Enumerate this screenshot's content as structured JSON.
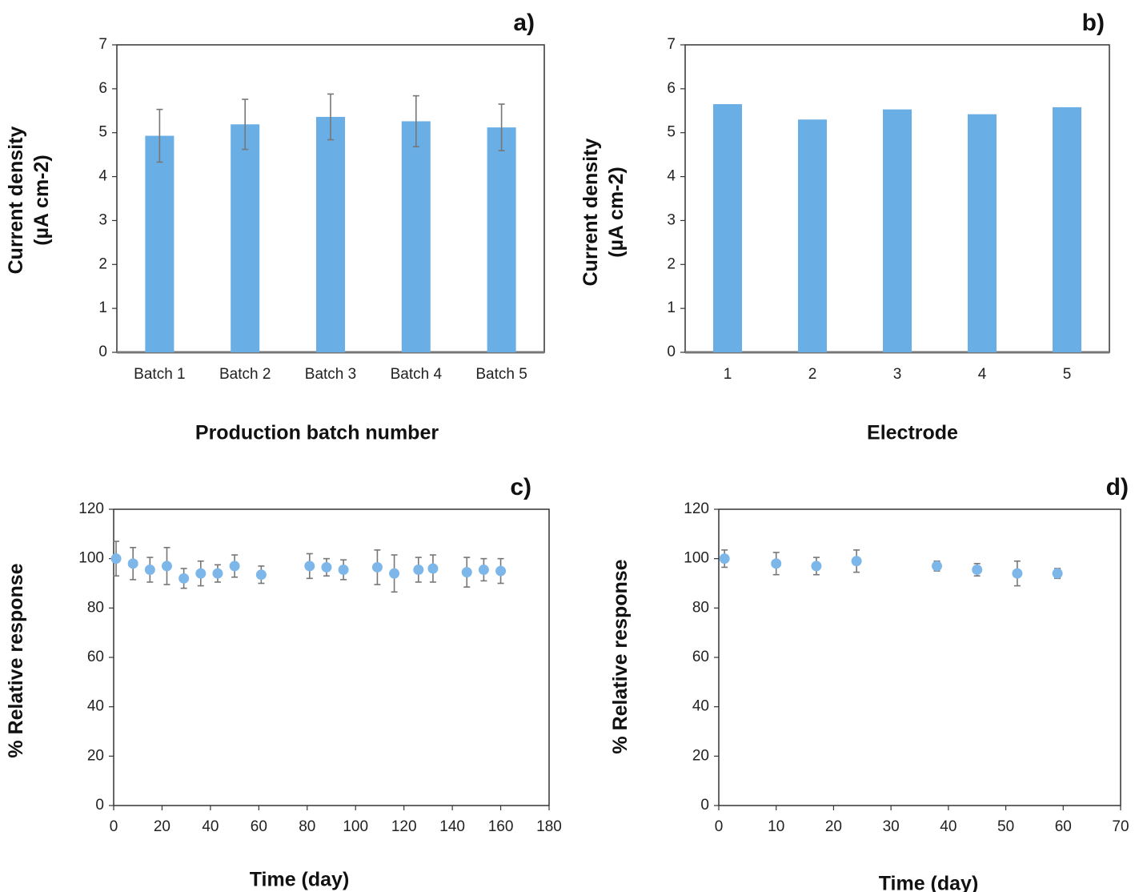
{
  "chart_data": [
    {
      "panel_label": "a)",
      "type": "bar",
      "categories": [
        "Batch 1",
        "Batch 2",
        "Batch 3",
        "Batch 4",
        "Batch 5"
      ],
      "values": [
        4.93,
        5.19,
        5.36,
        5.26,
        5.12
      ],
      "errors": [
        0.6,
        0.57,
        0.52,
        0.58,
        0.53
      ],
      "xlabel": "Production batch number",
      "ylabel": [
        "Current density",
        "(µA cm-2)"
      ],
      "ylim": [
        0,
        7
      ],
      "yticks": [
        0,
        1,
        2,
        3,
        4,
        5,
        6,
        7
      ],
      "color": "#6aaee6"
    },
    {
      "panel_label": "b)",
      "type": "bar",
      "categories": [
        "1",
        "2",
        "3",
        "4",
        "5"
      ],
      "values": [
        5.65,
        5.3,
        5.53,
        5.42,
        5.58
      ],
      "xlabel": "Electrode",
      "ylabel": [
        "Current density",
        "(µA cm-2)"
      ],
      "ylim": [
        0,
        7
      ],
      "yticks": [
        0,
        1,
        2,
        3,
        4,
        5,
        6,
        7
      ],
      "color": "#6aaee6"
    },
    {
      "panel_label": "c)",
      "type": "scatter",
      "x": [
        1,
        8,
        15,
        22,
        29,
        36,
        43,
        50,
        61,
        81,
        88,
        95,
        109,
        116,
        126,
        132,
        146,
        153,
        160
      ],
      "y": [
        100,
        98,
        95.5,
        97,
        92,
        94,
        94,
        97,
        93.5,
        97,
        96.5,
        95.5,
        96.5,
        94,
        95.5,
        96,
        94.5,
        95.5,
        95
      ],
      "errors": [
        7,
        6.5,
        5,
        7.5,
        4,
        5,
        3.5,
        4.5,
        3.5,
        5,
        3.5,
        4,
        7,
        7.5,
        5,
        5.5,
        6,
        4.5,
        5
      ],
      "xlabel": "Time (day)",
      "ylabel": "% Relative response",
      "xlim": [
        0,
        180
      ],
      "xticks": [
        0,
        20,
        40,
        60,
        80,
        100,
        120,
        140,
        160,
        180
      ],
      "ylim": [
        0,
        120
      ],
      "yticks": [
        0,
        20,
        40,
        60,
        80,
        100,
        120
      ],
      "color": "#7db6e8"
    },
    {
      "panel_label": "d)",
      "type": "scatter",
      "x": [
        1,
        10,
        17,
        24,
        38,
        45,
        52,
        59
      ],
      "y": [
        100,
        98,
        97,
        99,
        97,
        95.5,
        94,
        94
      ],
      "errors": [
        3.5,
        4.5,
        3.5,
        4.5,
        2,
        2.5,
        5,
        2
      ],
      "xlabel": "Time (day)",
      "ylabel": "% Relative response",
      "xlim": [
        0,
        70
      ],
      "xticks": [
        0,
        10,
        20,
        30,
        40,
        50,
        60,
        70
      ],
      "ylim": [
        0,
        120
      ],
      "yticks": [
        0,
        20,
        40,
        60,
        80,
        100,
        120
      ],
      "color": "#7db6e8"
    }
  ]
}
